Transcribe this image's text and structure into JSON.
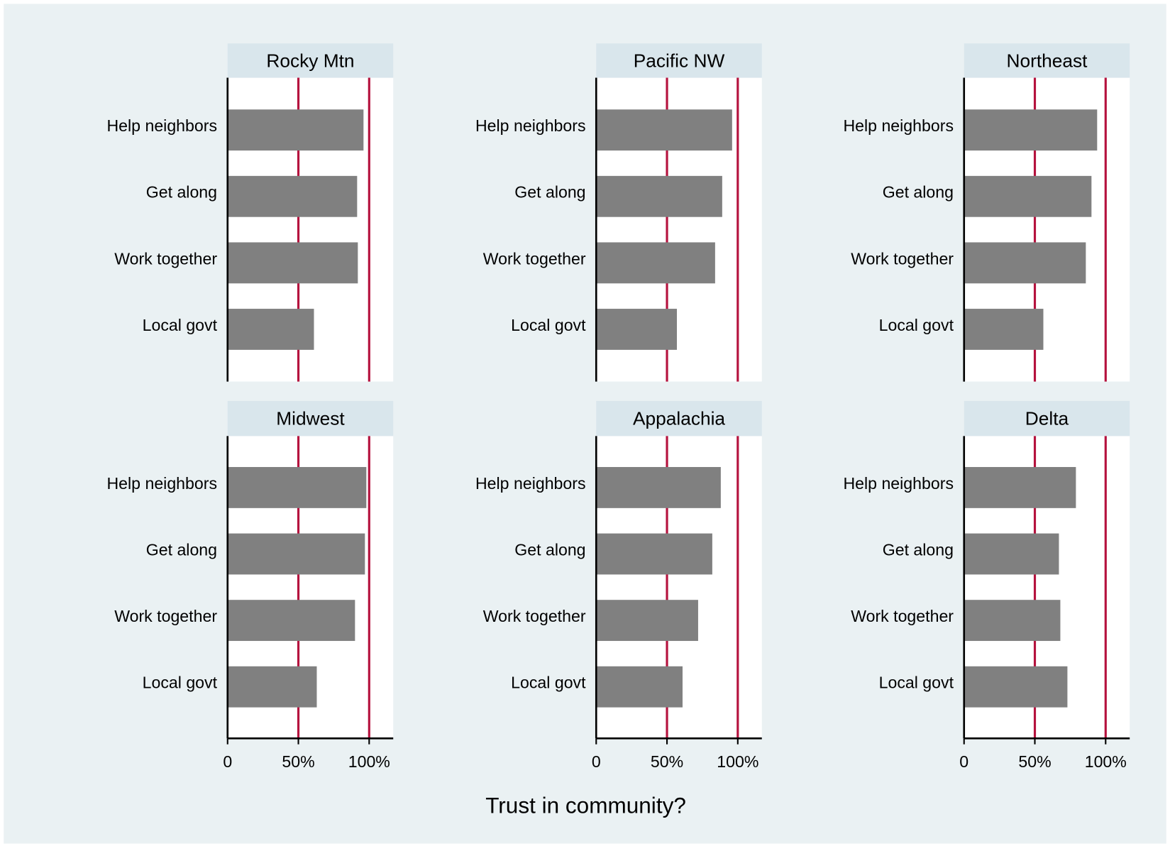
{
  "chart_data": {
    "type": "bar",
    "orientation": "horizontal",
    "xlabel": "Trust in community?",
    "categories": [
      "Help neighbors",
      "Get along",
      "Work together",
      "Local govt"
    ],
    "panels": [
      {
        "title": "Rocky Mtn",
        "values": [
          96,
          91.5,
          92,
          61
        ]
      },
      {
        "title": "Pacific NW",
        "values": [
          96,
          89,
          84,
          57
        ]
      },
      {
        "title": "Northeast",
        "values": [
          94,
          90,
          86,
          56
        ]
      },
      {
        "title": "Midwest",
        "values": [
          98,
          97,
          90,
          63
        ]
      },
      {
        "title": "Appalachia",
        "values": [
          88,
          82,
          72,
          61
        ]
      },
      {
        "title": "Delta",
        "values": [
          79,
          67,
          68,
          73
        ]
      }
    ],
    "color": "#808080",
    "xlim": [
      0,
      117
    ],
    "xticks": [
      0,
      {
        "value": 50,
        "label": "50%"
      },
      {
        "value": 100,
        "label": "100%"
      }
    ],
    "reference_lines": [
      50,
      100
    ],
    "reference_color": "#b5123e"
  }
}
